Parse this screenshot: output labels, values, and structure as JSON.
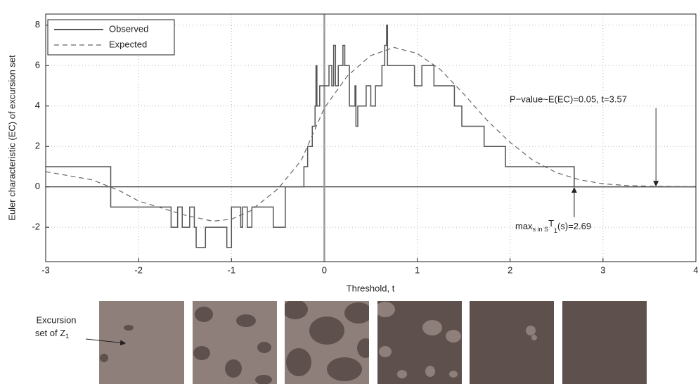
{
  "chart_data": {
    "type": "line",
    "xlabel": "Threshold, t",
    "ylabel": "Euler characteristic (EC) of excursion set",
    "xlim": [
      -3,
      4
    ],
    "ylim": [
      -3.7,
      8.55
    ],
    "xticks": [
      -3,
      -2,
      -1,
      0,
      1,
      2,
      3,
      4
    ],
    "yticks": [
      -2,
      0,
      2,
      4,
      6,
      8
    ],
    "grid": true,
    "legend": "upper left",
    "series": [
      {
        "name": "Observed",
        "color": "#555555",
        "step": "post",
        "x": [
          -3,
          -2.3,
          -1.65,
          -1.58,
          -1.53,
          -1.45,
          -1.4,
          -1.38,
          -1.28,
          -1.05,
          -1.0,
          -0.9,
          -0.88,
          -0.83,
          -0.78,
          -0.55,
          -0.42,
          -0.22,
          -0.18,
          -0.13,
          -0.1,
          -0.09,
          -0.08,
          -0.05,
          0.05,
          0.08,
          0.1,
          0.12,
          0.15,
          0.2,
          0.22,
          0.27,
          0.33,
          0.34,
          0.36,
          0.45,
          0.5,
          0.55,
          0.62,
          0.65,
          0.67,
          0.68,
          0.97,
          1.05,
          1.18,
          1.4,
          1.48,
          1.72,
          1.95,
          2.69,
          4
        ],
        "values": [
          1,
          -1,
          -2,
          -1,
          -2,
          -1,
          -2,
          -3,
          -2,
          -3,
          -1,
          -2,
          -1,
          -2,
          -1,
          -2,
          0,
          1,
          2,
          3,
          4,
          6,
          4,
          5,
          6,
          5,
          7,
          5,
          6,
          7,
          6,
          4,
          5,
          3,
          4,
          5,
          4,
          5,
          6,
          7,
          8,
          6,
          5,
          6,
          5,
          4,
          3,
          2,
          1,
          0,
          0
        ]
      },
      {
        "name": "Expected",
        "color": "#666666",
        "dash": true,
        "x": [
          -3,
          -2.5,
          -2.2,
          -2,
          -1.5,
          -1.2,
          -1,
          -0.8,
          -0.5,
          -0.25,
          0,
          0.25,
          0.5,
          0.75,
          1,
          1.25,
          1.5,
          1.75,
          2,
          2.25,
          2.5,
          2.75,
          3,
          3.25,
          3.5,
          4
        ],
        "values": [
          0.75,
          0.35,
          -0.2,
          -0.7,
          -1.4,
          -1.7,
          -1.6,
          -1.2,
          -0.1,
          1.3,
          3.9,
          5.5,
          6.5,
          6.9,
          6.6,
          5.8,
          4.6,
          3.3,
          2.2,
          1.3,
          0.7,
          0.35,
          0.15,
          0.07,
          0.03,
          0.01
        ]
      }
    ],
    "annotations": [
      {
        "text": "P−value~E(EC)=0.05, t=3.57",
        "x": 3.57
      },
      {
        "parts": [
          "max",
          "s in S",
          "T",
          "1",
          "(s)=2.69"
        ],
        "x": 2.69
      }
    ],
    "panel_label": {
      "line1": "Excursion",
      "line2": "set of Z",
      "sub": "1"
    }
  }
}
